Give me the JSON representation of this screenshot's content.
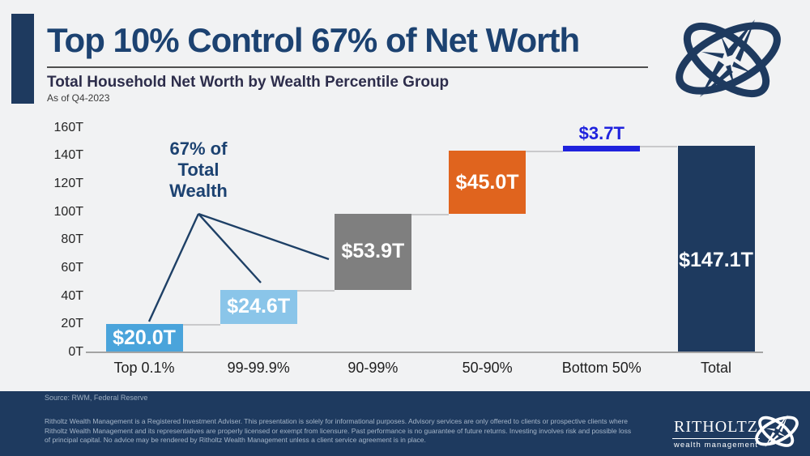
{
  "header": {
    "title": "Top 10% Control 67% of Net Worth",
    "subtitle": "Total Household Net Worth by Wealth Percentile Group",
    "as_of": "As of Q4-2023"
  },
  "annotation": {
    "line1": "67% of",
    "line2": "Total",
    "line3": "Wealth"
  },
  "chart_data": {
    "type": "bar",
    "subtype": "waterfall",
    "title": "Total Household Net Worth by Wealth Percentile Group",
    "unit": "trillions USD",
    "categories": [
      "Top 0.1%",
      "99-99.9%",
      "90-99%",
      "50-90%",
      "Bottom 50%",
      "Total"
    ],
    "values": [
      20.0,
      24.6,
      53.9,
      45.0,
      3.7,
      147.1
    ],
    "cumulative_start": [
      0,
      20.0,
      44.6,
      98.5,
      143.4,
      0
    ],
    "labels": [
      "$20.0T",
      "$24.6T",
      "$53.9T",
      "$45.0T",
      "$3.7T",
      "$147.1T"
    ],
    "bar_colors": [
      "#4aa4db",
      "#8ac5e9",
      "#7f7f7f",
      "#e0641e",
      "#1f22dd",
      "#1e3a5f"
    ],
    "label_colors": [
      "#ffffff",
      "#ffffff",
      "#ffffff",
      "#ffffff",
      "#1f22dd",
      "#ffffff"
    ],
    "ylim": [
      0,
      160
    ],
    "ytick_labels": [
      "0T",
      "20T",
      "40T",
      "60T",
      "80T",
      "100T",
      "120T",
      "140T",
      "160T"
    ],
    "ytick_values": [
      0,
      20,
      40,
      60,
      80,
      100,
      120,
      140,
      160
    ],
    "grid": false,
    "legend": "none",
    "annotation_text": "67% of Total Wealth"
  },
  "colors": {
    "navy": "#1e3a5f",
    "title_navy": "#1c4271",
    "bright_blue": "#1f22dd",
    "orange": "#e0641e",
    "gray_bar": "#7f7f7f",
    "light_blue": "#8ac5e9",
    "mid_blue": "#4aa4db"
  },
  "footer": {
    "source": "Source: RWM, Federal Reserve",
    "disclaimer": "Ritholtz Wealth Management is a Registered Investment Adviser. This presentation is solely for informational purposes. Advisory services are only offered to clients or prospective clients where Ritholtz Wealth Management and its representatives are properly licensed or exempt from licensure. Past performance is no guarantee of future returns. Investing involves risk and possible loss of principal capital. No advice may be rendered by Ritholtz Wealth Management unless a client service agreement is in place.",
    "logo_name": "RITHOLTZ",
    "logo_tagline": "wealth management"
  }
}
